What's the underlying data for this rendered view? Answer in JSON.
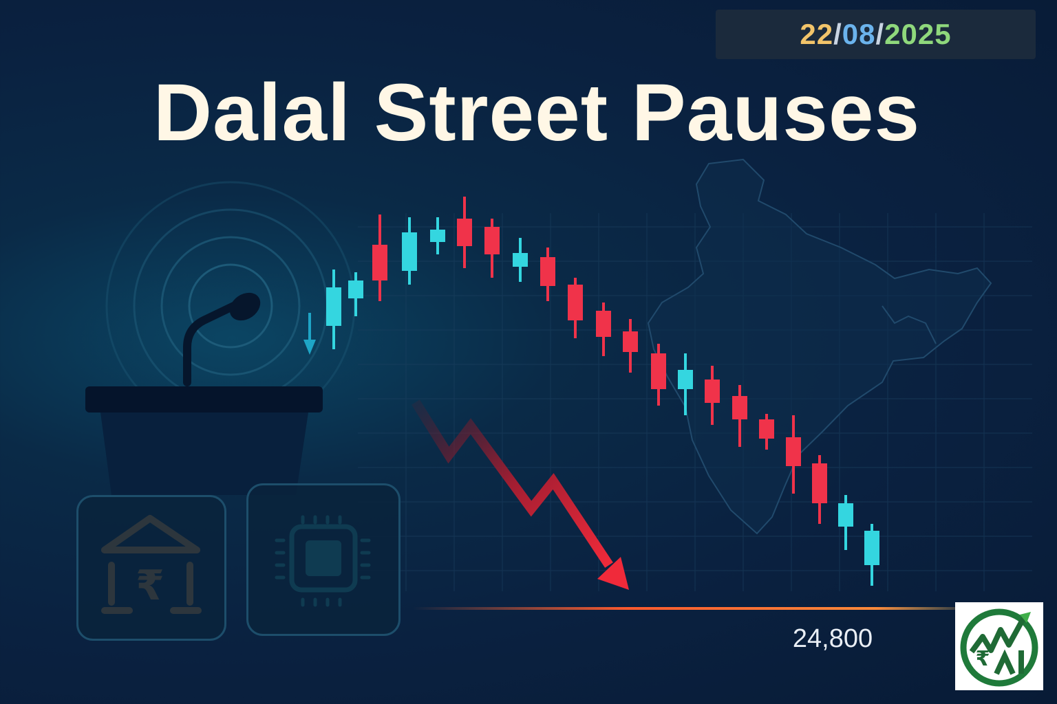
{
  "date": {
    "day": "22",
    "month": "08",
    "year": "2025",
    "separator": "/"
  },
  "headline": "Dalal Street Pauses",
  "index_level": "24,800",
  "icons": {
    "podium": "podium-microphone-icon",
    "bank": "bank-rupee-icon",
    "chip": "microchip-icon",
    "map": "india-map-icon",
    "trend": "downtrend-arrow-icon",
    "logo": "rupee-chart-logo-icon"
  },
  "colors": {
    "up_candle": "#34d6e0",
    "down_candle": "#f0334a",
    "bank_icon": "#f3a043",
    "chip_icon": "#2ec2c6",
    "title": "#fff7e6"
  },
  "candles": [
    {
      "dir": "up",
      "open": 0,
      "close": 0,
      "high": 0,
      "low": 0
    }
  ]
}
